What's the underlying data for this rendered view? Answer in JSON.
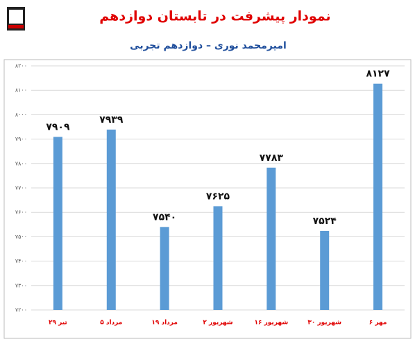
{
  "chart_data": {
    "type": "bar",
    "title": "نمودار پیشرفت در تابستان دوازدهم",
    "subtitle": "امیرمحمد نوری – دوازدهم تجربی",
    "categories": [
      "۲۹ تیر",
      "۵ مرداد",
      "۱۹ مرداد",
      "۲ شهریور",
      "۱۶ شهریور",
      "۳۰ شهریور",
      "۶ مهر"
    ],
    "values": [
      7909,
      7939,
      7540,
      7625,
      7783,
      7524,
      8127
    ],
    "value_labels": [
      "۷۹۰۹",
      "۷۹۳۹",
      "۷۵۴۰",
      "۷۶۲۵",
      "۷۷۸۳",
      "۷۵۲۴",
      "۸۱۲۷"
    ],
    "color": "#5b9bd5",
    "ylim": [
      7200,
      8200
    ],
    "yticks": [
      {
        "value": 7200,
        "label": "۷۲۰۰"
      },
      {
        "value": 7300,
        "label": "۷۳۰۰"
      },
      {
        "value": 7400,
        "label": "۷۴۰۰"
      },
      {
        "value": 7500,
        "label": "۷۵۰۰"
      },
      {
        "value": 7600,
        "label": "۷۶۰۰"
      },
      {
        "value": 7700,
        "label": "۷۷۰۰"
      },
      {
        "value": 7800,
        "label": "۷۸۰۰"
      },
      {
        "value": 7900,
        "label": "۷۹۰۰"
      },
      {
        "value": 8000,
        "label": "۸۰۰۰"
      },
      {
        "value": 8100,
        "label": "۸۱۰۰"
      },
      {
        "value": 8200,
        "label": "۸۲۰۰"
      }
    ],
    "grid": true
  }
}
